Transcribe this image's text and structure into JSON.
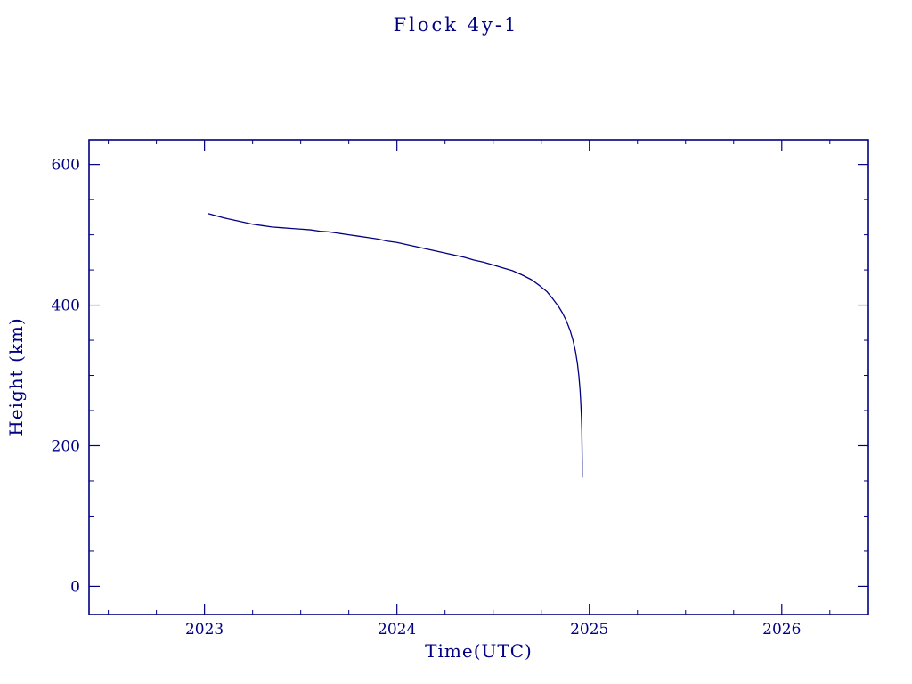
{
  "chart_data": {
    "type": "line",
    "title": "Flock 4y-1",
    "xlabel": "Time(UTC)",
    "ylabel": "Height (km)",
    "xlim": [
      2022.4,
      2026.45
    ],
    "ylim": [
      -40,
      635
    ],
    "xticks": [
      2023,
      2024,
      2025,
      2026
    ],
    "yticks": [
      0,
      200,
      400,
      600
    ],
    "x_minor_step": 0.25,
    "y_minor_step": 50,
    "grid": false,
    "legend": "none",
    "axis_color": "#000080",
    "line_color": "#000080",
    "background_color": "#ffffff",
    "series": [
      {
        "name": "height",
        "points": [
          [
            2023.02,
            530
          ],
          [
            2023.06,
            527
          ],
          [
            2023.1,
            524
          ],
          [
            2023.15,
            521
          ],
          [
            2023.2,
            518
          ],
          [
            2023.25,
            515
          ],
          [
            2023.3,
            513
          ],
          [
            2023.35,
            511
          ],
          [
            2023.4,
            510
          ],
          [
            2023.45,
            509
          ],
          [
            2023.5,
            508
          ],
          [
            2023.55,
            507
          ],
          [
            2023.6,
            505
          ],
          [
            2023.65,
            504
          ],
          [
            2023.7,
            502
          ],
          [
            2023.75,
            500
          ],
          [
            2023.8,
            498
          ],
          [
            2023.85,
            496
          ],
          [
            2023.9,
            494
          ],
          [
            2023.95,
            491
          ],
          [
            2024.0,
            489
          ],
          [
            2024.05,
            486
          ],
          [
            2024.1,
            483
          ],
          [
            2024.15,
            480
          ],
          [
            2024.2,
            477
          ],
          [
            2024.25,
            474
          ],
          [
            2024.3,
            471
          ],
          [
            2024.35,
            468
          ],
          [
            2024.4,
            464
          ],
          [
            2024.45,
            461
          ],
          [
            2024.5,
            457
          ],
          [
            2024.55,
            453
          ],
          [
            2024.6,
            449
          ],
          [
            2024.65,
            443
          ],
          [
            2024.7,
            436
          ],
          [
            2024.74,
            428
          ],
          [
            2024.78,
            419
          ],
          [
            2024.81,
            409
          ],
          [
            2024.84,
            398
          ],
          [
            2024.86,
            389
          ],
          [
            2024.88,
            378
          ],
          [
            2024.9,
            364
          ],
          [
            2024.915,
            350
          ],
          [
            2024.928,
            334
          ],
          [
            2024.938,
            317
          ],
          [
            2024.946,
            298
          ],
          [
            2024.952,
            278
          ],
          [
            2024.956,
            258
          ],
          [
            2024.959,
            240
          ],
          [
            2024.961,
            222
          ],
          [
            2024.962,
            200
          ],
          [
            2024.963,
            178
          ],
          [
            2024.963,
            155
          ]
        ]
      }
    ]
  }
}
